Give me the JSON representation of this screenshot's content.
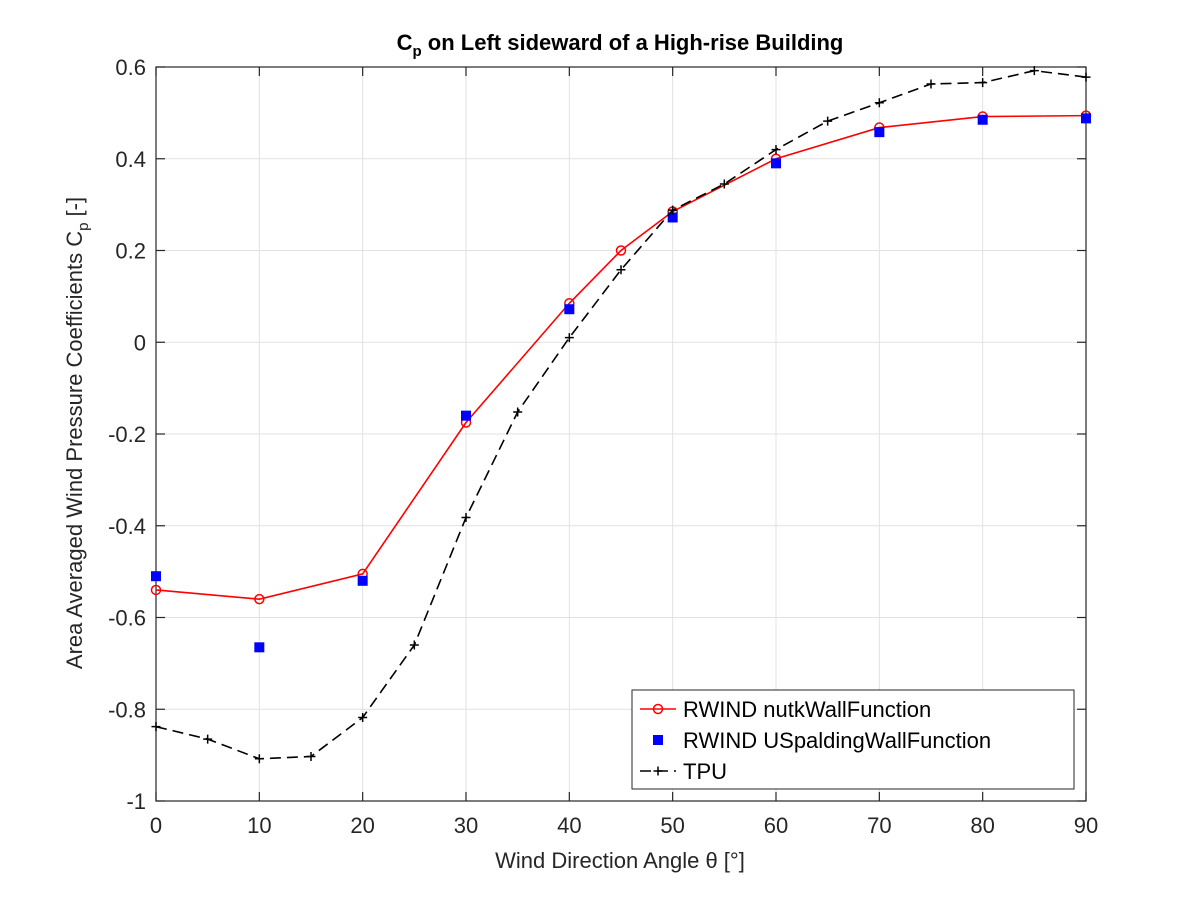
{
  "chart_data": {
    "type": "line",
    "title_main": "C",
    "title_sub": "p",
    "title_rest": " on Left sideward of a High-rise Building",
    "xlabel": "Wind Direction Angle θ [°]",
    "ylabel_main": "Area Averaged Wind Pressure Coefficients C",
    "ylabel_sub": "p",
    "ylabel_rest": " [-]",
    "xlim": [
      0,
      90
    ],
    "ylim": [
      -1,
      0.6
    ],
    "xticks": [
      0,
      10,
      20,
      30,
      40,
      50,
      60,
      70,
      80,
      90
    ],
    "yticks": [
      -1,
      -0.8,
      -0.6,
      -0.4,
      -0.2,
      0,
      0.2,
      0.4,
      0.6
    ],
    "ytick_labels": [
      "-1",
      "-0.8",
      "-0.6",
      "-0.4",
      "-0.2",
      "0",
      "0.2",
      "0.4",
      "0.6"
    ],
    "grid": true,
    "legend_position": "bottom-right",
    "series": [
      {
        "name": "RWIND nutkWallFunction",
        "color": "#ff0000",
        "line": "solid",
        "marker": "circle",
        "x": [
          0,
          10,
          20,
          30,
          40,
          45,
          50,
          60,
          70,
          80,
          90
        ],
        "y": [
          -0.54,
          -0.56,
          -0.505,
          -0.175,
          0.085,
          0.2,
          0.285,
          0.4,
          0.468,
          0.492,
          0.494
        ]
      },
      {
        "name": "RWIND USpaldingWallFunction",
        "color": "#0000ff",
        "line": "none",
        "marker": "square",
        "x": [
          0,
          10,
          20,
          30,
          40,
          50,
          60,
          70,
          80,
          90
        ],
        "y": [
          -0.51,
          -0.665,
          -0.52,
          -0.16,
          0.072,
          0.272,
          0.39,
          0.458,
          0.485,
          0.488
        ]
      },
      {
        "name": "TPU",
        "color": "#000000",
        "line": "dashed",
        "marker": "plus",
        "x": [
          0,
          5,
          10,
          15,
          20,
          25,
          30,
          35,
          40,
          45,
          50,
          55,
          60,
          65,
          70,
          75,
          80,
          85,
          90
        ],
        "y": [
          -0.838,
          -0.865,
          -0.908,
          -0.903,
          -0.818,
          -0.66,
          -0.382,
          -0.152,
          0.01,
          0.158,
          0.288,
          0.345,
          0.42,
          0.482,
          0.522,
          0.563,
          0.566,
          0.592,
          0.578
        ]
      }
    ]
  }
}
